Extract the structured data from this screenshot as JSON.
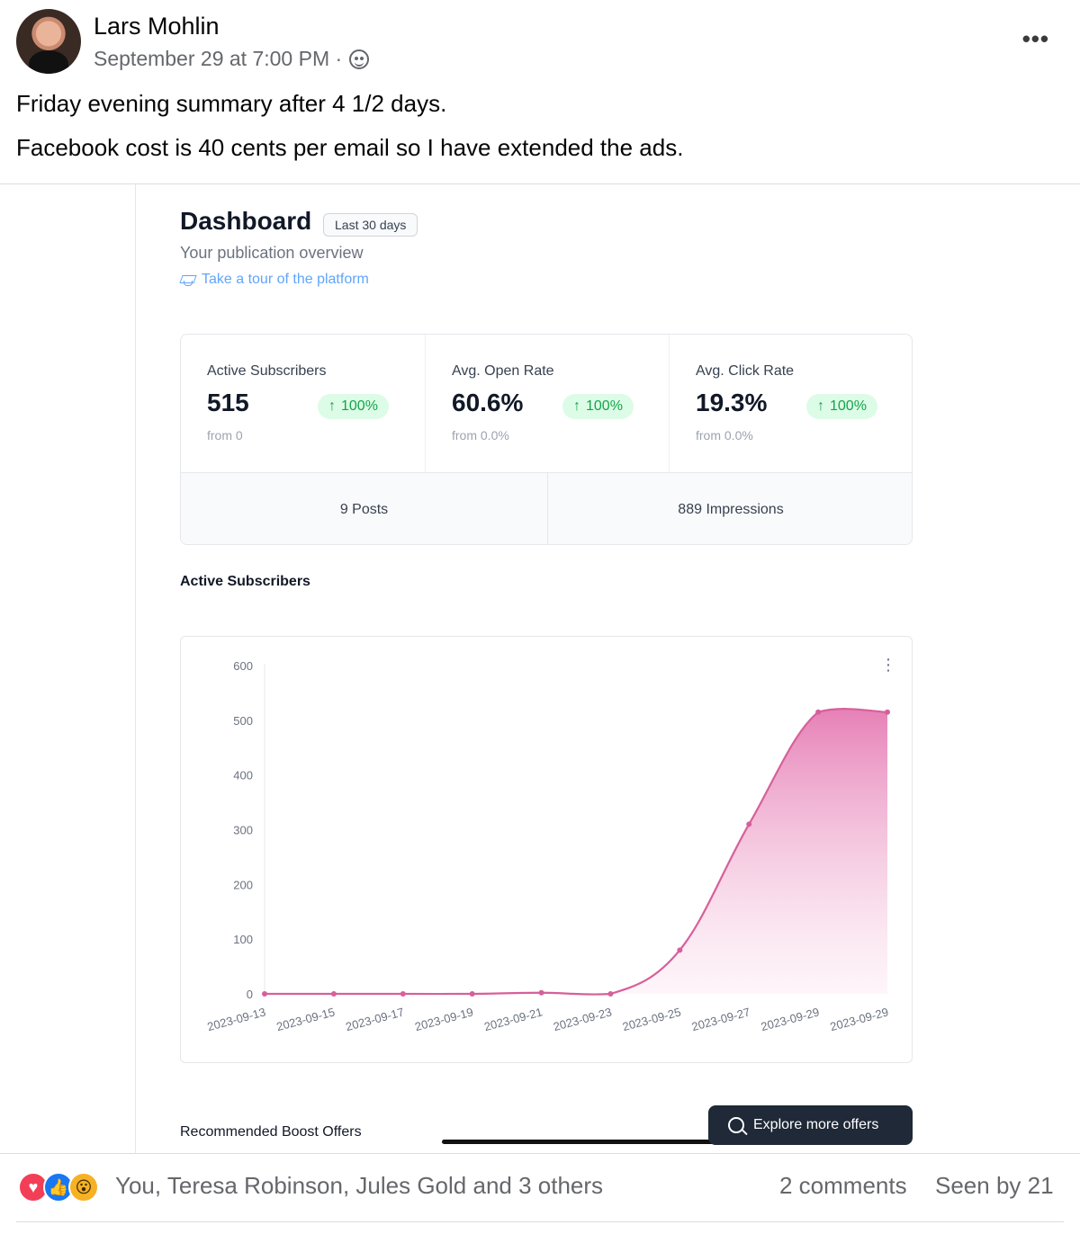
{
  "post": {
    "author": "Lars Mohlin",
    "timestamp": "September 29 at 7:00 PM ·",
    "audience_icon": "globe-icon",
    "text_line1": "Friday evening summary after 4 1/2 days.",
    "text_line2": "Facebook cost is 40 cents per email so I have extended the ads.",
    "more_label": "•••"
  },
  "dashboard": {
    "title": "Dashboard",
    "range": "Last 30 days",
    "subtitle": "Your publication overview",
    "tour_link": "Take a tour of the platform",
    "stats": [
      {
        "label": "Active Subscribers",
        "value": "515",
        "change": "100%",
        "from": "from 0"
      },
      {
        "label": "Avg. Open Rate",
        "value": "60.6%",
        "change": "100%",
        "from": "from 0.0%"
      },
      {
        "label": "Avg. Click Rate",
        "value": "19.3%",
        "change": "100%",
        "from": "from 0.0%"
      }
    ],
    "posts": "9 Posts",
    "impressions": "889 Impressions",
    "chart_section_title": "Active Subscribers",
    "boost_title": "Recommended Boost Offers",
    "explore_button": "Explore more offers",
    "accent_color": "#d6609a",
    "pill_bg": "#dcfce7",
    "pill_fg": "#16a34a"
  },
  "chart_data": {
    "type": "area",
    "title": "",
    "xlabel": "",
    "ylabel": "",
    "categories": [
      "2023-09-13",
      "2023-09-15",
      "2023-09-17",
      "2023-09-19",
      "2023-09-21",
      "2023-09-23",
      "2023-09-25",
      "2023-09-27",
      "2023-09-29",
      "2023-09-29"
    ],
    "series": [
      {
        "values": [
          0,
          0,
          0,
          0,
          2,
          0,
          80,
          310,
          515,
          515
        ]
      }
    ],
    "yticks": [
      "0",
      "100",
      "200",
      "300",
      "400",
      "500",
      "600"
    ],
    "ylim": [
      0,
      600
    ],
    "grid": false,
    "legend": "none"
  },
  "reactions": {
    "icons": [
      "heart-icon",
      "like-icon",
      "wow-icon"
    ],
    "names": "You, Teresa Robinson, Jules Gold and 3 others",
    "comments": "2 comments",
    "seen": "Seen by 21"
  }
}
